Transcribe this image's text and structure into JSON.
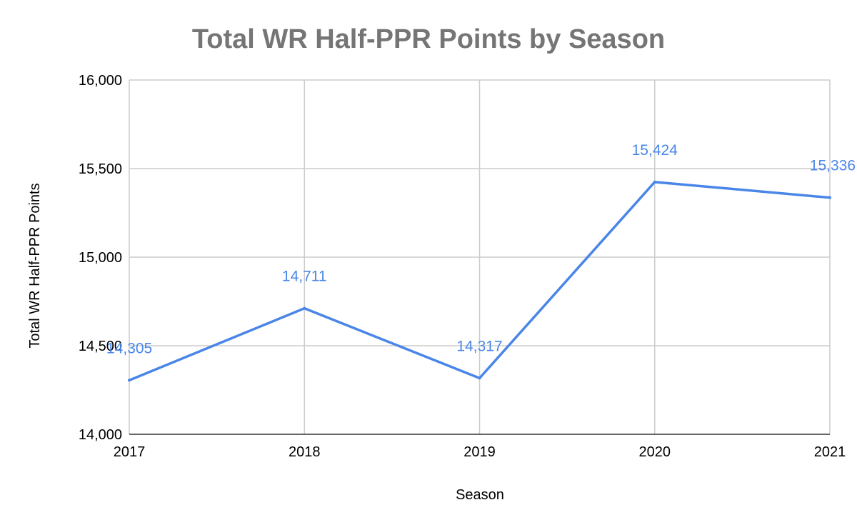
{
  "chart_data": {
    "type": "line",
    "title": "Total WR Half-PPR Points by Season",
    "xlabel": "Season",
    "ylabel": "Total WR Half-PPR Points",
    "categories": [
      "2017",
      "2018",
      "2019",
      "2020",
      "2021"
    ],
    "series": [
      {
        "values": [
          14305,
          14711,
          14317,
          15424,
          15336
        ],
        "data_labels": [
          "14,305",
          "14,711",
          "14,317",
          "15,424",
          "15,336"
        ],
        "color": "#4a86e8"
      }
    ],
    "ylim": [
      14000,
      16000
    ],
    "y_ticks": [
      14000,
      14500,
      15000,
      15500,
      16000
    ],
    "y_tick_labels": [
      "14,000",
      "14,500",
      "15,000",
      "15,500",
      "16,000"
    ],
    "grid": true,
    "legend": "none"
  }
}
